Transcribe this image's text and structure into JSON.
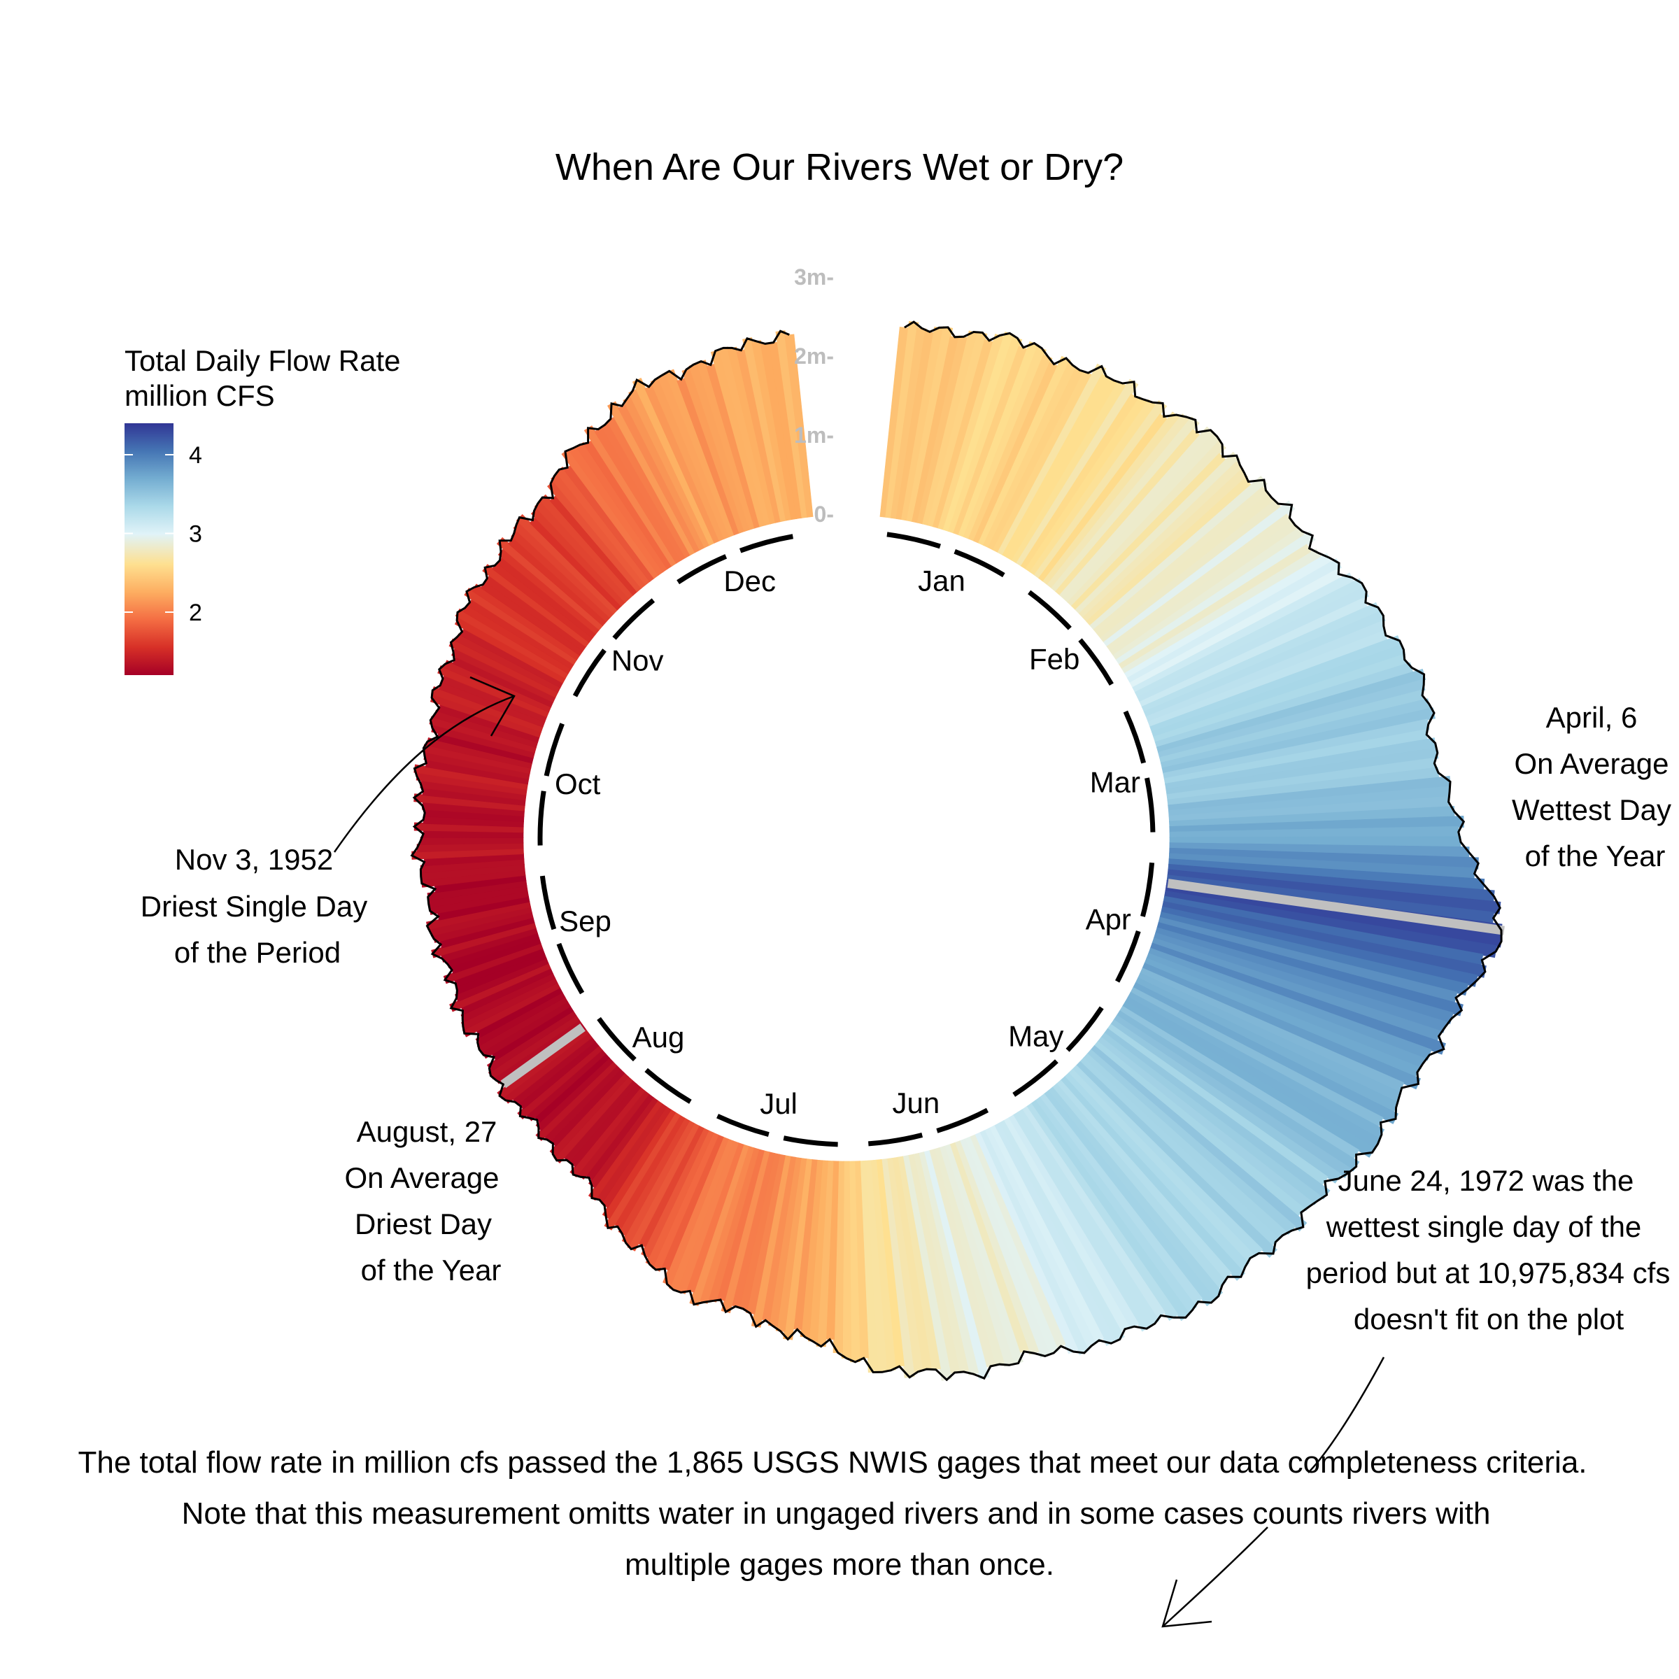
{
  "chart_data": {
    "type": "radial-bar",
    "title": "When Are Our Rivers Wet or Dry?",
    "legend": {
      "title_line1": "Total Daily Flow Rate",
      "title_line2": "million CFS",
      "ticks": [
        "2",
        "3",
        "4"
      ],
      "tick_values": [
        2,
        3,
        4
      ],
      "range": [
        1.2,
        4.4
      ],
      "colors": [
        "#a50026",
        "#d73027",
        "#f46d43",
        "#fdae61",
        "#fee090",
        "#e0f3f8",
        "#abd9e9",
        "#74add1",
        "#4575b4",
        "#313695"
      ],
      "position": "left"
    },
    "radial_axis": {
      "ticks": [
        "0-",
        "1m-",
        "2m-",
        "3m-"
      ],
      "tick_values": [
        0,
        1,
        2,
        3
      ]
    },
    "months": [
      "Jan",
      "Feb",
      "Mar",
      "Apr",
      "May",
      "Jun",
      "Jul",
      "Aug",
      "Sep",
      "Oct",
      "Nov",
      "Dec"
    ],
    "monthly_mean_flow_million_cfs": [
      2.55,
      2.8,
      3.45,
      3.75,
      3.35,
      2.85,
      2.05,
      1.3,
      1.25,
      1.35,
      1.6,
      2.2
    ],
    "day_of_year_extremes": {
      "wettest_day_of_year": 96,
      "driest_day_of_year": 239,
      "wettest_value": 4.3,
      "driest_value": 1.25
    },
    "annotations": {
      "wettest": [
        "April, 6",
        "On Average",
        "Wettest Day",
        "of the Year"
      ],
      "driest": [
        "August, 27",
        "On Average",
        "Driest Day",
        "of the Year"
      ],
      "driest_single": [
        "Nov 3, 1952",
        "Driest Single Day",
        "of the Period"
      ],
      "wettest_single": [
        "June 24, 1972 was the",
        "wettest single day of the",
        "period but at  10,975,834 cfs",
        "doesn't fit on the plot"
      ]
    },
    "driest_single_day_of_year": 307,
    "driest_single_value": 1.05
  },
  "caption": [
    "The total flow rate in million cfs passed the 1,865 USGS NWIS gages that meet our data completeness criteria.",
    "Note that this measurement omitts water in ungaged rivers and in some cases counts rivers with",
    "multiple gages more than once."
  ]
}
